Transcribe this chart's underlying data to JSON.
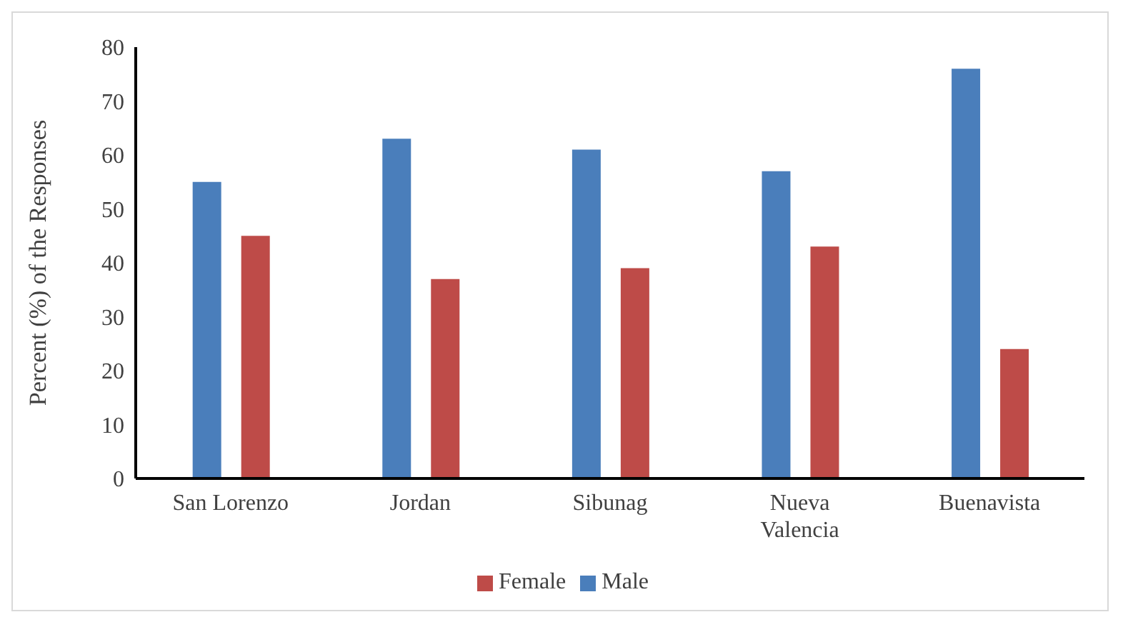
{
  "chart_data": {
    "type": "bar",
    "ylabel": "Percent (%) of the Responses",
    "categories": [
      "San Lorenzo",
      "Jordan",
      "Sibunag",
      "Nueva Valencia",
      "Buenavista"
    ],
    "series": [
      {
        "name": "Male",
        "color": "#4a7ebb",
        "values": [
          55,
          63,
          61,
          57,
          76
        ]
      },
      {
        "name": "Female",
        "color": "#be4b48",
        "values": [
          45,
          37,
          39,
          43,
          24
        ]
      }
    ],
    "ylim": [
      0,
      80
    ],
    "yticks": [
      0,
      10,
      20,
      30,
      40,
      50,
      60,
      70,
      80
    ],
    "grid": false,
    "legend": "bottom"
  }
}
